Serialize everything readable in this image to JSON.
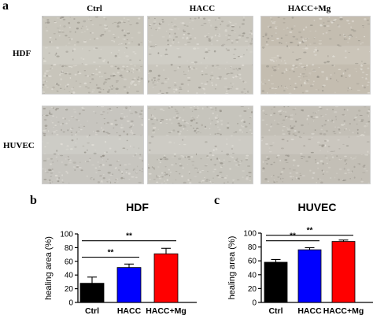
{
  "figure": {
    "panel_a": "a",
    "panel_b": "b",
    "panel_c": "c",
    "columns": [
      "Ctrl",
      "HACC",
      "HACC+Mg"
    ],
    "rows": [
      "HDF",
      "HUVEC"
    ]
  },
  "micrographs": {
    "HDF": [
      "#c8c5bb",
      "#c9c6bd",
      "#c4bdb0"
    ],
    "HUVEC": [
      "#c7c5bf",
      "#c6c4bc",
      "#c3bfb6"
    ]
  },
  "chart_data": [
    {
      "type": "bar",
      "title": "HDF",
      "categories": [
        "Ctrl",
        "HACC",
        "HACC+Mg"
      ],
      "values": [
        28,
        51,
        71
      ],
      "errors": [
        9,
        5,
        8
      ],
      "colors": [
        "#000000",
        "#0000ff",
        "#ff0000"
      ],
      "ylabel": "healing area (%)",
      "ylim": [
        0,
        100
      ],
      "yticks": [
        0,
        20,
        40,
        60,
        80,
        100
      ],
      "significance": [
        {
          "from": 0,
          "to": 1,
          "label": "**",
          "y": 66
        },
        {
          "from": 0,
          "to": 2,
          "label": "**",
          "y": 90
        }
      ]
    },
    {
      "type": "bar",
      "title": "HUVEC",
      "categories": [
        "Ctrl",
        "HACC",
        "HACC+Mg"
      ],
      "values": [
        58,
        76,
        88
      ],
      "errors": [
        4,
        3,
        2
      ],
      "colors": [
        "#000000",
        "#0000ff",
        "#ff0000"
      ],
      "ylabel": "healing area (%)",
      "ylim": [
        0,
        100
      ],
      "yticks": [
        0,
        20,
        40,
        60,
        80,
        100
      ],
      "significance": [
        {
          "from": 0,
          "to": 1,
          "label": "**",
          "y": 89
        },
        {
          "from": 0,
          "to": 2,
          "label": "**",
          "y": 97
        }
      ]
    }
  ]
}
